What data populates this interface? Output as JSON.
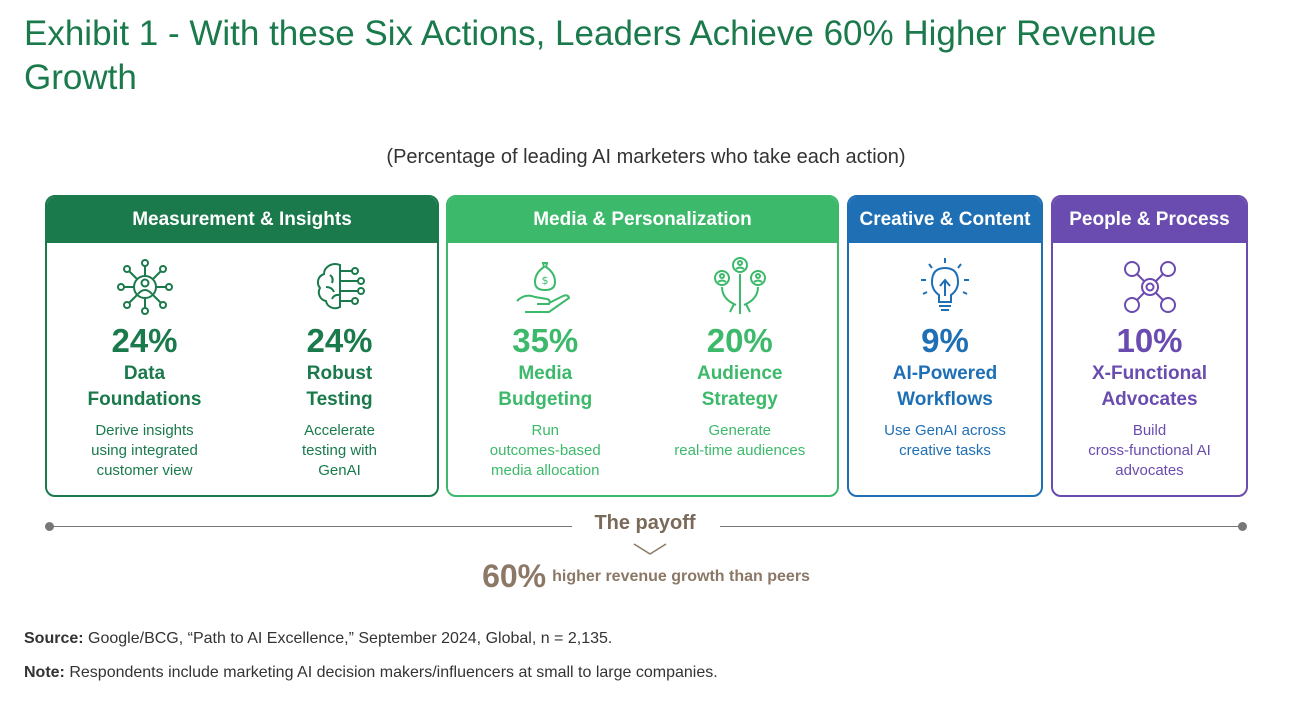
{
  "title": "Exhibit 1 - With these Six Actions, Leaders Achieve 60% Higher Revenue Growth",
  "subtitle": "(Percentage of leading AI marketers who take each action)",
  "colors": {
    "measurement": "#1a7a4c",
    "media": "#3cb96a",
    "creative": "#1f6fb5",
    "people": "#6a4cb0",
    "payoff": "#8b7866"
  },
  "groups": [
    {
      "header": "Measurement & Insights",
      "actions": [
        {
          "icon": "network-person-icon",
          "percent": "24%",
          "name_line1": "Data",
          "name_line2": "Foundations",
          "desc_line1": "Derive insights",
          "desc_line2": "using integrated",
          "desc_line3": "customer view"
        },
        {
          "icon": "brain-circuit-icon",
          "percent": "24%",
          "name_line1": "Robust",
          "name_line2": "Testing",
          "desc_line1": "Accelerate",
          "desc_line2": "testing with",
          "desc_line3": "GenAI"
        }
      ]
    },
    {
      "header": "Media & Personalization",
      "actions": [
        {
          "icon": "money-hand-icon",
          "percent": "35%",
          "name_line1": "Media",
          "name_line2": "Budgeting",
          "desc_line1": "Run",
          "desc_line2": "outcomes-based",
          "desc_line3": "media allocation"
        },
        {
          "icon": "audience-icon",
          "percent": "20%",
          "name_line1": "Audience",
          "name_line2": "Strategy",
          "desc_line1": "Generate",
          "desc_line2": "real-time audiences",
          "desc_line3": ""
        }
      ]
    },
    {
      "header": "Creative & Content",
      "actions": [
        {
          "icon": "lightbulb-icon",
          "percent": "9%",
          "name_line1": "AI-Powered",
          "name_line2": "Workflows",
          "desc_line1": "Use GenAI across",
          "desc_line2": "creative tasks",
          "desc_line3": ""
        }
      ]
    },
    {
      "header": "People & Process",
      "actions": [
        {
          "icon": "hub-network-icon",
          "percent": "10%",
          "name_line1": "X-Functional",
          "name_line2": "Advocates",
          "desc_line1": "Build",
          "desc_line2": "cross-functional AI",
          "desc_line3": "advocates"
        }
      ]
    }
  ],
  "payoff": {
    "label": "The payoff",
    "value": "60%",
    "text": "higher revenue growth than peers"
  },
  "footer": {
    "source_label": "Source:",
    "source_text": " Google/BCG, “Path to AI Excellence,” September 2024, Global, n = 2,135.",
    "note_label": "Note:",
    "note_text": " Respondents include marketing AI decision makers/influencers at small to large companies."
  }
}
